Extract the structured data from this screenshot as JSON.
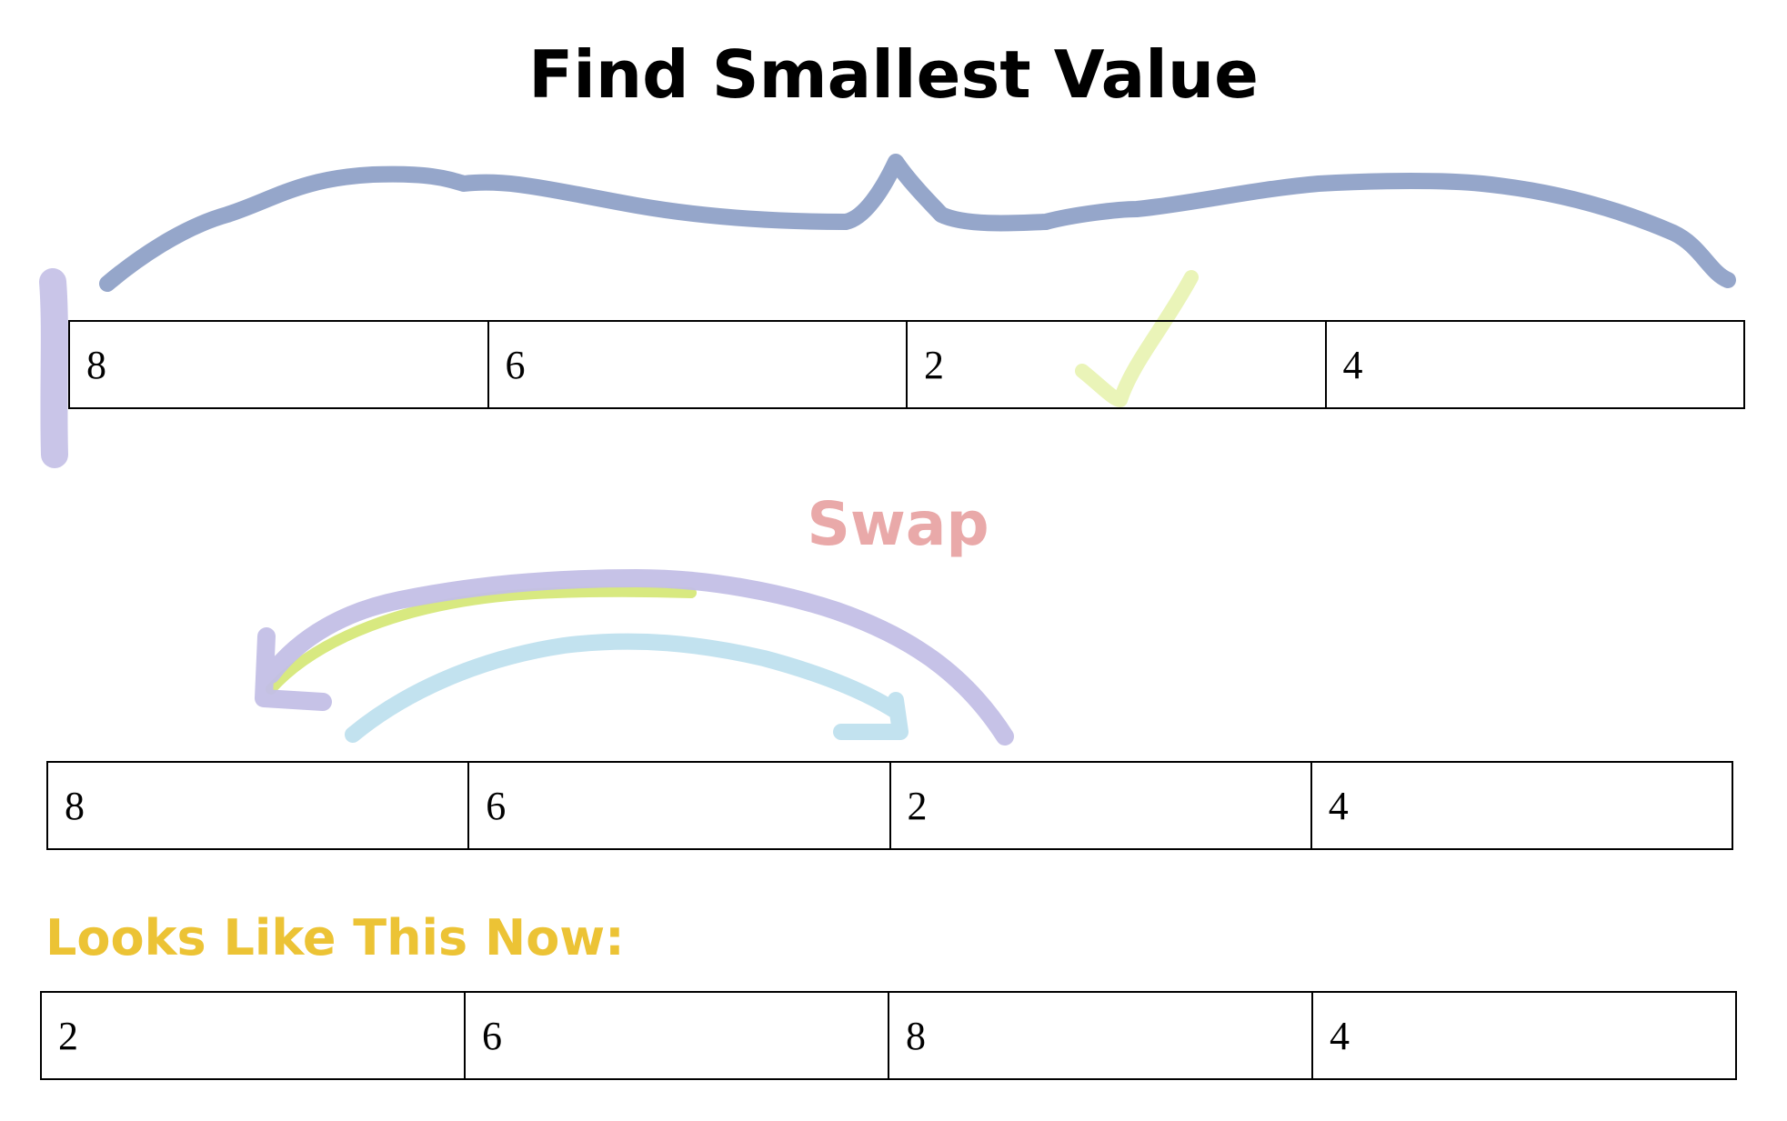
{
  "title": "Find Smallest Value",
  "swap_label": "Swap",
  "result_label": "Looks Like This Now:",
  "colors": {
    "swap_label": "#e9a9a9",
    "result_label": "#ecc335",
    "brace": "#8a9cc4",
    "marker": "#c3bfe6",
    "check": "#eaf4b8",
    "arrow_left": "#c3bfe6",
    "arrow_left_under": "#c8e04a",
    "arrow_right": "#bfe0ee"
  },
  "rows": {
    "find": [
      "8",
      "6",
      "2",
      "4"
    ],
    "swap": [
      "8",
      "6",
      "2",
      "4"
    ],
    "result": [
      "2",
      "6",
      "8",
      "4"
    ]
  }
}
